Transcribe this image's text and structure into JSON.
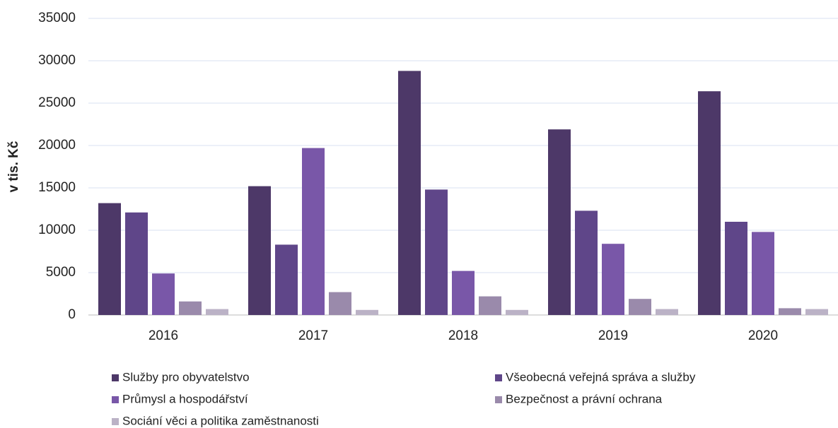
{
  "chart_data": {
    "type": "bar",
    "ylabel": "v tis. Kč",
    "categories": [
      "2016",
      "2017",
      "2018",
      "2019",
      "2020"
    ],
    "series": [
      {
        "name": "Služby pro obyvatelstvo",
        "color": "#4d3868",
        "values": [
          13200,
          15200,
          28800,
          21900,
          26400
        ]
      },
      {
        "name": "Všeobecná veřejná správa a služby",
        "color": "#5f4689",
        "values": [
          12100,
          8300,
          14800,
          12300,
          11000
        ]
      },
      {
        "name": "Průmysl a hospodářství",
        "color": "#7957a8",
        "values": [
          4900,
          19700,
          5200,
          8400,
          9800
        ]
      },
      {
        "name": "Bezpečnost a právní ochrana",
        "color": "#9a8aab",
        "values": [
          1600,
          2700,
          2200,
          1900,
          800
        ]
      },
      {
        "name": "Sociání věci a politika zaměstnanosti",
        "color": "#bbb2c6",
        "values": [
          700,
          600,
          600,
          700,
          700
        ]
      }
    ],
    "ylim": [
      0,
      35000
    ],
    "yticks": [
      0,
      5000,
      10000,
      15000,
      20000,
      25000,
      30000,
      35000
    ],
    "grid": true
  }
}
